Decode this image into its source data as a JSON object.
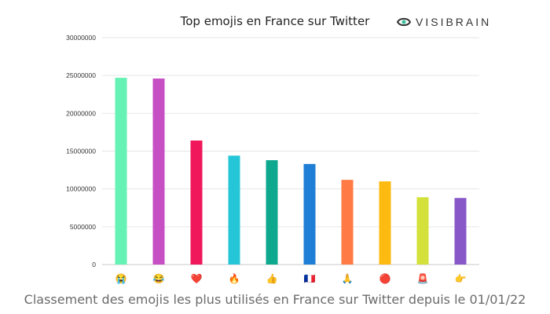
{
  "brand": {
    "name": "VISIBRAIN",
    "logo_icon": "eye-logo-icon"
  },
  "caption": "Classement des emojis les plus utilisés en France sur Twitter depuis le 01/01/22",
  "chart_data": {
    "type": "bar",
    "title": "Top emojis en France sur Twitter",
    "xlabel": "",
    "ylabel": "",
    "ylim": [
      0,
      30000000
    ],
    "yticks": [
      0,
      5000000,
      10000000,
      15000000,
      20000000,
      25000000,
      30000000
    ],
    "ytick_labels": [
      "0",
      "5000000",
      "10000000",
      "15000000",
      "20000000",
      "25000000",
      "30000000"
    ],
    "grid": true,
    "categories": [
      "😭",
      "😂",
      "❤️",
      "🔥",
      "👍",
      "🇫🇷",
      "🙏",
      "🔴",
      "🚨",
      "👉"
    ],
    "values": [
      24700000,
      24600000,
      16400000,
      14400000,
      13800000,
      13300000,
      11200000,
      11000000,
      8900000,
      8800000
    ],
    "colors": [
      "#66f2b5",
      "#c64fc4",
      "#f0185a",
      "#25c6d8",
      "#0ea88e",
      "#1f7fd6",
      "#ff7a45",
      "#fdbb12",
      "#d3e13a",
      "#8858c8"
    ]
  }
}
